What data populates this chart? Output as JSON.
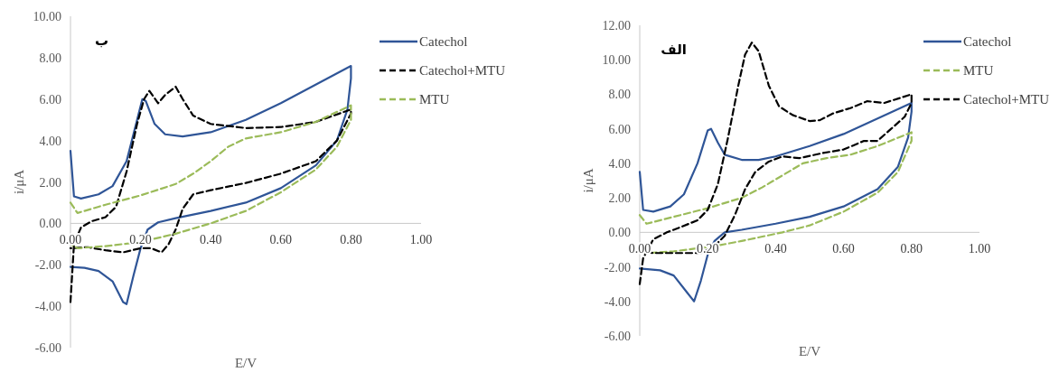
{
  "chart_data": [
    {
      "type": "line",
      "annotations": [
        "ب"
      ],
      "xlabel": "E/V",
      "ylabel": "i/μA",
      "legend": "top right",
      "xlim": [
        0,
        1
      ],
      "ylim": [
        -6,
        10
      ],
      "xticks": [
        {
          "value": 0,
          "label": "0.00"
        },
        {
          "value": 0.2,
          "label": "0.20"
        },
        {
          "value": 0.4,
          "label": "0.40"
        },
        {
          "value": 0.6,
          "label": "0.60"
        },
        {
          "value": 0.8,
          "label": "0.80"
        },
        {
          "value": 1,
          "label": "1.00"
        }
      ],
      "yticks": [
        {
          "value": -6,
          "label": "-6.00"
        },
        {
          "value": -4,
          "label": "-4.00"
        },
        {
          "value": -2,
          "label": "-2.00"
        },
        {
          "value": 0,
          "label": "0.00"
        },
        {
          "value": 2,
          "label": "2.00"
        },
        {
          "value": 4,
          "label": "4.00"
        },
        {
          "value": 6,
          "label": "6.00"
        },
        {
          "value": 8,
          "label": "8.00"
        },
        {
          "value": 10,
          "label": "10.00"
        }
      ],
      "series": [
        {
          "name": "Catechol",
          "color": "#2f5597",
          "line_style": "solid",
          "x": [
            0,
            0.01,
            0.03,
            0.08,
            0.12,
            0.16,
            0.19,
            0.205,
            0.215,
            0.24,
            0.27,
            0.32,
            0.4,
            0.5,
            0.6,
            0.8,
            0.8,
            0.79,
            0.76,
            0.7,
            0.6,
            0.5,
            0.4,
            0.3,
            0.25,
            0.22,
            0.2,
            0.18,
            0.16,
            0.15,
            0.12,
            0.08,
            0.04,
            0
          ],
          "values": [
            3.5,
            1.3,
            1.2,
            1.4,
            1.8,
            3.0,
            5.0,
            6.0,
            5.9,
            4.8,
            4.3,
            4.2,
            4.4,
            5.0,
            5.8,
            7.6,
            7.0,
            5.5,
            4.0,
            2.8,
            1.7,
            1.0,
            0.6,
            0.25,
            0.05,
            -0.3,
            -1.2,
            -2.5,
            -3.9,
            -3.8,
            -2.8,
            -2.3,
            -2.15,
            -2.1
          ]
        },
        {
          "name": "Catechol+MTU",
          "color": "#000000",
          "line_style": "dashed",
          "x": [
            0,
            0.01,
            0.03,
            0.06,
            0.1,
            0.13,
            0.16,
            0.19,
            0.21,
            0.225,
            0.25,
            0.27,
            0.3,
            0.32,
            0.35,
            0.4,
            0.5,
            0.6,
            0.7,
            0.8,
            0.8,
            0.76,
            0.7,
            0.6,
            0.5,
            0.4,
            0.35,
            0.32,
            0.3,
            0.28,
            0.26,
            0.23,
            0.2,
            0.15,
            0.1,
            0.05,
            0
          ],
          "values": [
            -3.8,
            -1.0,
            -0.2,
            0.1,
            0.3,
            0.8,
            2.5,
            4.8,
            6.0,
            6.4,
            5.8,
            6.2,
            6.6,
            6.0,
            5.2,
            4.8,
            4.6,
            4.65,
            4.9,
            5.5,
            5.3,
            4.0,
            3.0,
            2.4,
            1.95,
            1.6,
            1.4,
            0.7,
            -0.3,
            -1.0,
            -1.4,
            -1.2,
            -1.2,
            -1.4,
            -1.3,
            -1.15,
            -1.2
          ]
        },
        {
          "name": "MTU",
          "color": "#9bbb59",
          "line_style": "dashed",
          "x": [
            0,
            0.02,
            0.1,
            0.2,
            0.3,
            0.35,
            0.4,
            0.45,
            0.5,
            0.6,
            0.7,
            0.8,
            0.8,
            0.76,
            0.7,
            0.6,
            0.5,
            0.4,
            0.3,
            0.2,
            0.1,
            0.02,
            0
          ],
          "values": [
            1.0,
            0.5,
            0.9,
            1.35,
            1.9,
            2.4,
            3.0,
            3.7,
            4.1,
            4.4,
            4.9,
            5.7,
            5.0,
            3.7,
            2.6,
            1.5,
            0.6,
            0.0,
            -0.5,
            -0.9,
            -1.1,
            -1.2,
            -1.0
          ]
        }
      ]
    },
    {
      "type": "line",
      "annotations": [
        "الف"
      ],
      "xlabel": "E/V",
      "ylabel": "i/μA",
      "legend": "top right",
      "xlim": [
        0,
        1
      ],
      "ylim": [
        -6,
        12
      ],
      "xticks": [
        {
          "value": 0,
          "label": "0.00"
        },
        {
          "value": 0.2,
          "label": "0.20"
        },
        {
          "value": 0.4,
          "label": "0.40"
        },
        {
          "value": 0.6,
          "label": "0.60"
        },
        {
          "value": 0.8,
          "label": "0.80"
        },
        {
          "value": 1,
          "label": "1.00"
        }
      ],
      "yticks": [
        {
          "value": -6,
          "label": "-6.00"
        },
        {
          "value": -4,
          "label": "-4.00"
        },
        {
          "value": -2,
          "label": "-2.00"
        },
        {
          "value": 0,
          "label": "0.00"
        },
        {
          "value": 2,
          "label": "2.00"
        },
        {
          "value": 4,
          "label": "4.00"
        },
        {
          "value": 6,
          "label": "6.00"
        },
        {
          "value": 8,
          "label": "8.00"
        },
        {
          "value": 10,
          "label": "10.00"
        },
        {
          "value": 12,
          "label": "12.00"
        }
      ],
      "series": [
        {
          "name": "Catechol",
          "color": "#2f5597",
          "line_style": "solid",
          "x": [
            0,
            0.01,
            0.04,
            0.09,
            0.13,
            0.17,
            0.2,
            0.21,
            0.23,
            0.25,
            0.3,
            0.35,
            0.4,
            0.5,
            0.6,
            0.8,
            0.8,
            0.79,
            0.76,
            0.7,
            0.6,
            0.5,
            0.4,
            0.3,
            0.25,
            0.22,
            0.2,
            0.18,
            0.16,
            0.14,
            0.1,
            0.06,
            0
          ],
          "values": [
            3.5,
            1.3,
            1.2,
            1.5,
            2.2,
            4.0,
            5.9,
            6.0,
            5.2,
            4.5,
            4.2,
            4.2,
            4.4,
            5.0,
            5.7,
            7.5,
            7.0,
            5.5,
            3.8,
            2.5,
            1.5,
            0.9,
            0.5,
            0.15,
            0.0,
            -0.5,
            -1.3,
            -2.8,
            -4.0,
            -3.5,
            -2.5,
            -2.2,
            -2.1
          ]
        },
        {
          "name": "MTU",
          "color": "#9bbb59",
          "line_style": "dashed",
          "x": [
            0,
            0.02,
            0.1,
            0.2,
            0.3,
            0.36,
            0.42,
            0.48,
            0.55,
            0.62,
            0.7,
            0.8,
            0.8,
            0.76,
            0.7,
            0.6,
            0.5,
            0.42,
            0.3,
            0.22,
            0.1,
            0.02,
            0
          ],
          "values": [
            1.0,
            0.5,
            0.9,
            1.4,
            2.0,
            2.6,
            3.3,
            4.0,
            4.3,
            4.5,
            5.0,
            5.8,
            5.3,
            3.5,
            2.3,
            1.2,
            0.4,
            0.0,
            -0.5,
            -0.8,
            -1.1,
            -1.2,
            -1.0
          ]
        },
        {
          "name": "Catechol+MTU",
          "color": "#000000",
          "line_style": "dashed",
          "x": [
            0,
            0.01,
            0.04,
            0.08,
            0.12,
            0.17,
            0.2,
            0.23,
            0.26,
            0.29,
            0.31,
            0.33,
            0.35,
            0.38,
            0.41,
            0.45,
            0.5,
            0.53,
            0.57,
            0.62,
            0.67,
            0.72,
            0.8,
            0.8,
            0.78,
            0.74,
            0.7,
            0.66,
            0.6,
            0.54,
            0.47,
            0.42,
            0.38,
            0.34,
            0.31,
            0.28,
            0.25,
            0.22,
            0.18,
            0.1,
            0.04,
            0
          ],
          "values": [
            -3.0,
            -1.5,
            -0.4,
            0.0,
            0.3,
            0.7,
            1.3,
            2.8,
            5.5,
            8.5,
            10.3,
            11.0,
            10.5,
            8.5,
            7.3,
            6.8,
            6.45,
            6.5,
            6.9,
            7.2,
            7.6,
            7.5,
            8.0,
            7.5,
            6.7,
            6.0,
            5.3,
            5.3,
            4.8,
            4.6,
            4.3,
            4.4,
            4.1,
            3.5,
            2.5,
            1.0,
            -0.2,
            -0.8,
            -1.2,
            -1.2,
            -1.2,
            -1.1
          ]
        }
      ]
    }
  ]
}
